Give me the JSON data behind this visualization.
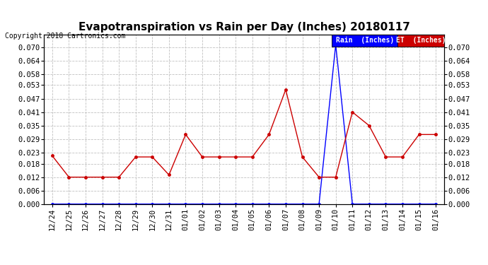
{
  "title": "Evapotranspiration vs Rain per Day (Inches) 20180117",
  "copyright": "Copyright 2018 Cartronics.com",
  "labels": [
    "12/24",
    "12/25",
    "12/26",
    "12/27",
    "12/28",
    "12/29",
    "12/30",
    "12/31",
    "01/01",
    "01/02",
    "01/03",
    "01/04",
    "01/05",
    "01/06",
    "01/07",
    "01/08",
    "01/09",
    "01/10",
    "01/11",
    "01/12",
    "01/13",
    "01/14",
    "01/15",
    "01/16"
  ],
  "rain_values": [
    0.0,
    0.0,
    0.0,
    0.0,
    0.0,
    0.0,
    0.0,
    0.0,
    0.0,
    0.0,
    0.0,
    0.0,
    0.0,
    0.0,
    0.0,
    0.0,
    0.0,
    0.071,
    0.0,
    0.0,
    0.0,
    0.0,
    0.0,
    0.0
  ],
  "et_values": [
    0.0215,
    0.012,
    0.012,
    0.012,
    0.012,
    0.021,
    0.021,
    0.013,
    0.031,
    0.021,
    0.021,
    0.021,
    0.021,
    0.031,
    0.051,
    0.021,
    0.012,
    0.012,
    0.041,
    0.035,
    0.021,
    0.021,
    0.031,
    0.031
  ],
  "rain_color": "#0000FF",
  "et_color": "#CC0000",
  "background_color": "#FFFFFF",
  "plot_bg_color": "#FFFFFF",
  "grid_color": "#C0C0C0",
  "ylim": [
    0.0,
    0.0756
  ],
  "yticks": [
    0.0,
    0.006,
    0.012,
    0.018,
    0.023,
    0.029,
    0.035,
    0.041,
    0.047,
    0.053,
    0.058,
    0.064,
    0.07
  ],
  "legend_rain_bg": "#0000FF",
  "legend_et_bg": "#CC0000",
  "title_fontsize": 11,
  "tick_fontsize": 7.5,
  "copyright_fontsize": 7
}
